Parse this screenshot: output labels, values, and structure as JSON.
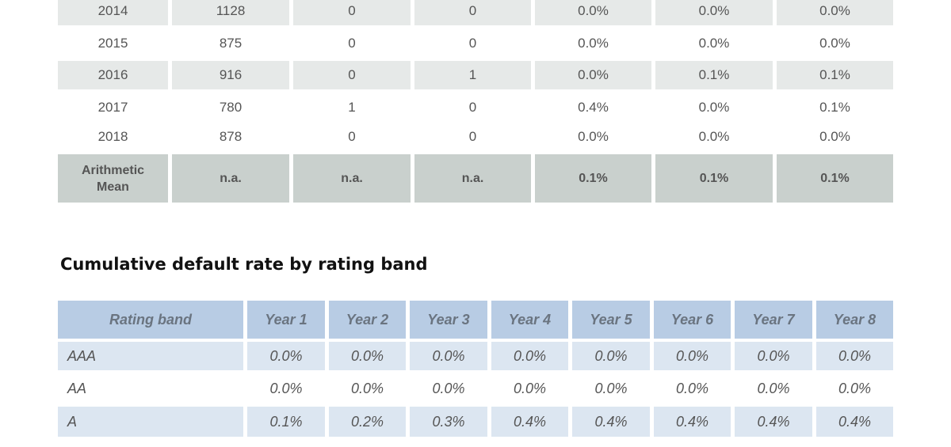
{
  "top_table": {
    "rows": [
      [
        "2014",
        "1128",
        "0",
        "0",
        "0.0%",
        "0.0%",
        "0.0%"
      ],
      [
        "2015",
        "875",
        "0",
        "0",
        "0.0%",
        "0.0%",
        "0.0%"
      ],
      [
        "2016",
        "916",
        "0",
        "1",
        "0.0%",
        "0.1%",
        "0.1%"
      ],
      [
        "2017",
        "780",
        "1",
        "0",
        "0.4%",
        "0.0%",
        "0.1%"
      ],
      [
        "2018",
        "878",
        "0",
        "0",
        "0.0%",
        "0.0%",
        "0.0%"
      ],
      [
        "Arithmetic Mean",
        "n.a.",
        "n.a.",
        "n.a.",
        "0.1%",
        "0.1%",
        "0.1%"
      ]
    ]
  },
  "rating_table": {
    "title": "Cumulative default rate by rating band",
    "header": [
      "Rating band",
      "Year 1",
      "Year 2",
      "Year 3",
      "Year 4",
      "Year 5",
      "Year 6",
      "Year 7",
      "Year 8"
    ],
    "rows": [
      [
        "AAA",
        "0.0%",
        "0.0%",
        "0.0%",
        "0.0%",
        "0.0%",
        "0.0%",
        "0.0%",
        "0.0%"
      ],
      [
        "AA",
        "0.0%",
        "0.0%",
        "0.0%",
        "0.0%",
        "0.0%",
        "0.0%",
        "0.0%",
        "0.0%"
      ],
      [
        "A",
        "0.1%",
        "0.2%",
        "0.3%",
        "0.4%",
        "0.4%",
        "0.4%",
        "0.4%",
        "0.4%"
      ]
    ]
  }
}
